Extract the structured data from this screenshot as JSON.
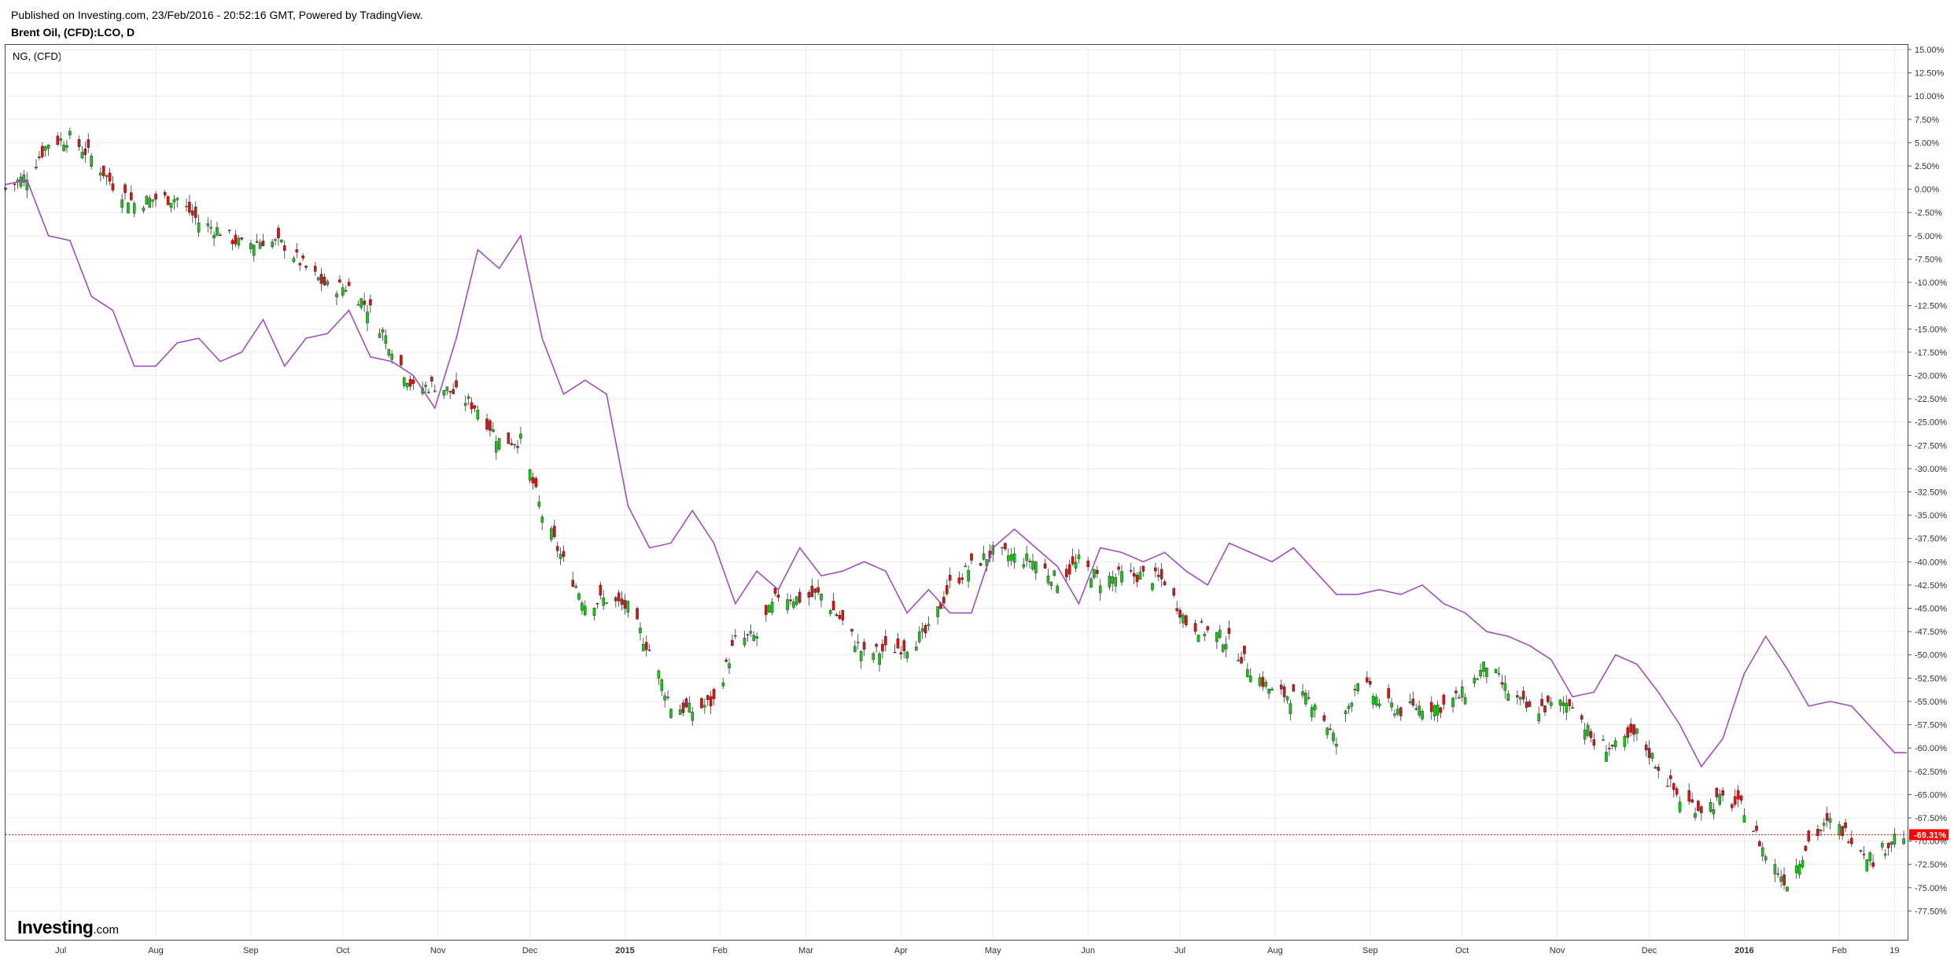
{
  "header": {
    "published": "Published on Investing.com, 23/Feb/2016 - 20:52:16 GMT, Powered by TradingView.",
    "symbol": "Brent Oil, (CFD):LCO, D"
  },
  "compare_label": "NG,  (CFD)",
  "logo": {
    "main": "Investing",
    "suffix": ".com"
  },
  "colors": {
    "up_candle": "#19c419",
    "down_candle": "#d61515",
    "compare_line": "#a34dbd",
    "last_value_marker": "#ff0000",
    "grid": "#ebebeb"
  },
  "chart_data": {
    "type": "line",
    "title": "",
    "ylabel": "",
    "xlabel": "",
    "y_unit": "%",
    "ylim": [
      -80,
      15
    ],
    "y_ticks": [
      "15.00%",
      "12.50%",
      "10.00%",
      "7.50%",
      "5.00%",
      "2.50%",
      "0.00%",
      "-2.50%",
      "-5.00%",
      "-7.50%",
      "-10.00%",
      "-12.50%",
      "-15.00%",
      "-17.50%",
      "-20.00%",
      "-22.50%",
      "-25.00%",
      "-27.50%",
      "-30.00%",
      "-32.50%",
      "-35.00%",
      "-37.50%",
      "-40.00%",
      "-42.50%",
      "-45.00%",
      "-47.50%",
      "-50.00%",
      "-52.50%",
      "-55.00%",
      "-57.50%",
      "-60.00%",
      "-62.50%",
      "-65.00%",
      "-67.50%",
      "-70.00%",
      "-72.50%",
      "-75.00%",
      "-77.50%"
    ],
    "x_ticks": [
      {
        "label": "Jul",
        "bold": false
      },
      {
        "label": "Aug",
        "bold": false
      },
      {
        "label": "Sep",
        "bold": false
      },
      {
        "label": "Oct",
        "bold": false
      },
      {
        "label": "Nov",
        "bold": false
      },
      {
        "label": "Dec",
        "bold": false
      },
      {
        "label": "2015",
        "bold": true
      },
      {
        "label": "Feb",
        "bold": false
      },
      {
        "label": "Mar",
        "bold": false
      },
      {
        "label": "Apr",
        "bold": false
      },
      {
        "label": "May",
        "bold": false
      },
      {
        "label": "Jun",
        "bold": false
      },
      {
        "label": "Jul",
        "bold": false
      },
      {
        "label": "Aug",
        "bold": false
      },
      {
        "label": "Sep",
        "bold": false
      },
      {
        "label": "Oct",
        "bold": false
      },
      {
        "label": "Nov",
        "bold": false
      },
      {
        "label": "Dec",
        "bold": false
      },
      {
        "label": "2016",
        "bold": true
      },
      {
        "label": "Feb",
        "bold": false
      },
      {
        "label": "19",
        "bold": false
      }
    ],
    "x_tick_dates": [
      "2014-07-01",
      "2014-08-01",
      "2014-09-01",
      "2014-10-01",
      "2014-11-01",
      "2014-12-01",
      "2015-01-01",
      "2015-02-01",
      "2015-03-01",
      "2015-04-01",
      "2015-05-01",
      "2015-06-01",
      "2015-07-01",
      "2015-08-01",
      "2015-09-01",
      "2015-10-01",
      "2015-11-01",
      "2015-12-01",
      "2016-01-01",
      "2016-02-01",
      "2016-02-19"
    ],
    "x_range": [
      "2014-06-13",
      "2016-02-23"
    ],
    "grid": true,
    "last_value_label": "-69.31%",
    "candles": {
      "name": "Brent Oil, (CFD):LCO, D",
      "style": "candlestick",
      "points": [
        [
          "2014-06-13",
          0.0
        ],
        [
          "2014-06-20",
          1.5
        ],
        [
          "2014-06-27",
          5.0
        ],
        [
          "2014-07-04",
          5.5
        ],
        [
          "2014-07-11",
          3.5
        ],
        [
          "2014-07-18",
          0.5
        ],
        [
          "2014-07-25",
          -1.5
        ],
        [
          "2014-08-01",
          -1.0
        ],
        [
          "2014-08-08",
          -1.0
        ],
        [
          "2014-08-15",
          -3.5
        ],
        [
          "2014-08-22",
          -4.5
        ],
        [
          "2014-08-29",
          -6.0
        ],
        [
          "2014-09-05",
          -5.5
        ],
        [
          "2014-09-12",
          -6.0
        ],
        [
          "2014-09-19",
          -8.5
        ],
        [
          "2014-09-26",
          -10.5
        ],
        [
          "2014-10-03",
          -10.5
        ],
        [
          "2014-10-10",
          -13.0
        ],
        [
          "2014-10-17",
          -17.0
        ],
        [
          "2014-10-24",
          -21.5
        ],
        [
          "2014-10-31",
          -21.0
        ],
        [
          "2014-11-07",
          -22.0
        ],
        [
          "2014-11-14",
          -23.5
        ],
        [
          "2014-11-21",
          -27.0
        ],
        [
          "2014-11-28",
          -27.0
        ],
        [
          "2014-12-05",
          -35.0
        ],
        [
          "2014-12-12",
          -40.0
        ],
        [
          "2014-12-19",
          -44.5
        ],
        [
          "2014-12-26",
          -44.0
        ],
        [
          "2015-01-02",
          -45.0
        ],
        [
          "2015-01-09",
          -49.5
        ],
        [
          "2015-01-16",
          -55.5
        ],
        [
          "2015-01-23",
          -56.0
        ],
        [
          "2015-01-30",
          -55.0
        ],
        [
          "2015-02-06",
          -48.5
        ],
        [
          "2015-02-13",
          -48.0
        ],
        [
          "2015-02-20",
          -43.5
        ],
        [
          "2015-02-27",
          -44.0
        ],
        [
          "2015-03-06",
          -43.5
        ],
        [
          "2015-03-13",
          -46.5
        ],
        [
          "2015-03-20",
          -50.0
        ],
        [
          "2015-03-27",
          -49.5
        ],
        [
          "2015-04-03",
          -49.0
        ],
        [
          "2015-04-10",
          -47.5
        ],
        [
          "2015-04-17",
          -42.5
        ],
        [
          "2015-04-24",
          -40.5
        ],
        [
          "2015-05-01",
          -39.0
        ],
        [
          "2015-05-08",
          -39.5
        ],
        [
          "2015-05-15",
          -40.0
        ],
        [
          "2015-05-22",
          -42.0
        ],
        [
          "2015-05-29",
          -40.0
        ],
        [
          "2015-06-05",
          -42.0
        ],
        [
          "2015-06-12",
          -41.5
        ],
        [
          "2015-06-19",
          -41.5
        ],
        [
          "2015-06-26",
          -42.0
        ],
        [
          "2015-07-03",
          -46.5
        ],
        [
          "2015-07-10",
          -47.5
        ],
        [
          "2015-07-17",
          -48.5
        ],
        [
          "2015-07-24",
          -51.5
        ],
        [
          "2015-07-31",
          -54.0
        ],
        [
          "2015-08-07",
          -54.5
        ],
        [
          "2015-08-14",
          -55.0
        ],
        [
          "2015-08-21",
          -59.5
        ],
        [
          "2015-08-28",
          -52.5
        ],
        [
          "2015-09-04",
          -55.0
        ],
        [
          "2015-09-11",
          -56.0
        ],
        [
          "2015-09-18",
          -55.5
        ],
        [
          "2015-09-25",
          -55.5
        ],
        [
          "2015-10-02",
          -54.0
        ],
        [
          "2015-10-09",
          -51.0
        ],
        [
          "2015-10-16",
          -54.0
        ],
        [
          "2015-10-23",
          -56.0
        ],
        [
          "2015-10-30",
          -55.5
        ],
        [
          "2015-11-06",
          -55.0
        ],
        [
          "2015-11-13",
          -59.5
        ],
        [
          "2015-11-20",
          -60.0
        ],
        [
          "2015-11-27",
          -58.5
        ],
        [
          "2015-12-04",
          -62.0
        ],
        [
          "2015-12-11",
          -65.5
        ],
        [
          "2015-12-18",
          -66.5
        ],
        [
          "2015-12-25",
          -65.5
        ],
        [
          "2016-01-01",
          -66.5
        ],
        [
          "2016-01-08",
          -71.5
        ],
        [
          "2016-01-15",
          -74.5
        ],
        [
          "2016-01-22",
          -70.0
        ],
        [
          "2016-01-29",
          -68.0
        ],
        [
          "2016-02-05",
          -69.5
        ],
        [
          "2016-02-12",
          -72.0
        ],
        [
          "2016-02-19",
          -69.5
        ],
        [
          "2016-02-23",
          -69.31
        ]
      ]
    },
    "series": [
      {
        "name": "NG,  (CFD)",
        "style": "line",
        "points": [
          [
            "2014-06-13",
            0.5
          ],
          [
            "2014-06-20",
            1.0
          ],
          [
            "2014-06-27",
            -5.0
          ],
          [
            "2014-07-04",
            -5.5
          ],
          [
            "2014-07-11",
            -11.5
          ],
          [
            "2014-07-18",
            -13.0
          ],
          [
            "2014-07-25",
            -19.0
          ],
          [
            "2014-08-01",
            -19.0
          ],
          [
            "2014-08-08",
            -16.5
          ],
          [
            "2014-08-15",
            -16.0
          ],
          [
            "2014-08-22",
            -18.5
          ],
          [
            "2014-08-29",
            -17.5
          ],
          [
            "2014-09-05",
            -14.0
          ],
          [
            "2014-09-12",
            -19.0
          ],
          [
            "2014-09-19",
            -16.0
          ],
          [
            "2014-09-26",
            -15.5
          ],
          [
            "2014-10-03",
            -13.0
          ],
          [
            "2014-10-10",
            -18.0
          ],
          [
            "2014-10-17",
            -18.5
          ],
          [
            "2014-10-24",
            -20.0
          ],
          [
            "2014-10-31",
            -23.5
          ],
          [
            "2014-11-07",
            -16.0
          ],
          [
            "2014-11-14",
            -6.5
          ],
          [
            "2014-11-21",
            -8.5
          ],
          [
            "2014-11-28",
            -5.0
          ],
          [
            "2014-12-05",
            -16.0
          ],
          [
            "2014-12-12",
            -22.0
          ],
          [
            "2014-12-19",
            -20.5
          ],
          [
            "2014-12-26",
            -22.0
          ],
          [
            "2015-01-02",
            -34.0
          ],
          [
            "2015-01-09",
            -38.5
          ],
          [
            "2015-01-16",
            -38.0
          ],
          [
            "2015-01-23",
            -34.5
          ],
          [
            "2015-01-30",
            -38.0
          ],
          [
            "2015-02-06",
            -44.5
          ],
          [
            "2015-02-13",
            -41.0
          ],
          [
            "2015-02-20",
            -43.0
          ],
          [
            "2015-02-27",
            -38.5
          ],
          [
            "2015-03-06",
            -41.5
          ],
          [
            "2015-03-13",
            -41.0
          ],
          [
            "2015-03-20",
            -40.0
          ],
          [
            "2015-03-27",
            -41.0
          ],
          [
            "2015-04-03",
            -45.5
          ],
          [
            "2015-04-10",
            -43.0
          ],
          [
            "2015-04-17",
            -45.5
          ],
          [
            "2015-04-24",
            -45.5
          ],
          [
            "2015-05-01",
            -38.5
          ],
          [
            "2015-05-08",
            -36.5
          ],
          [
            "2015-05-15",
            -38.5
          ],
          [
            "2015-05-22",
            -40.5
          ],
          [
            "2015-05-29",
            -44.5
          ],
          [
            "2015-06-05",
            -38.5
          ],
          [
            "2015-06-12",
            -39.0
          ],
          [
            "2015-06-19",
            -40.0
          ],
          [
            "2015-06-26",
            -39.0
          ],
          [
            "2015-07-03",
            -41.0
          ],
          [
            "2015-07-10",
            -42.5
          ],
          [
            "2015-07-17",
            -38.0
          ],
          [
            "2015-07-24",
            -39.0
          ],
          [
            "2015-07-31",
            -40.0
          ],
          [
            "2015-08-07",
            -38.5
          ],
          [
            "2015-08-14",
            -41.0
          ],
          [
            "2015-08-21",
            -43.5
          ],
          [
            "2015-08-28",
            -43.5
          ],
          [
            "2015-09-04",
            -43.0
          ],
          [
            "2015-09-11",
            -43.5
          ],
          [
            "2015-09-18",
            -42.5
          ],
          [
            "2015-09-25",
            -44.5
          ],
          [
            "2015-10-02",
            -45.5
          ],
          [
            "2015-10-09",
            -47.5
          ],
          [
            "2015-10-16",
            -48.0
          ],
          [
            "2015-10-23",
            -49.0
          ],
          [
            "2015-10-30",
            -50.5
          ],
          [
            "2015-11-06",
            -54.5
          ],
          [
            "2015-11-13",
            -54.0
          ],
          [
            "2015-11-20",
            -50.0
          ],
          [
            "2015-11-27",
            -51.0
          ],
          [
            "2015-12-04",
            -54.0
          ],
          [
            "2015-12-11",
            -57.5
          ],
          [
            "2015-12-18",
            -62.0
          ],
          [
            "2015-12-25",
            -59.0
          ],
          [
            "2016-01-01",
            -52.0
          ],
          [
            "2016-01-08",
            -48.0
          ],
          [
            "2016-01-15",
            -51.5
          ],
          [
            "2016-01-22",
            -55.5
          ],
          [
            "2016-01-29",
            -55.0
          ],
          [
            "2016-02-05",
            -55.5
          ],
          [
            "2016-02-12",
            -58.0
          ],
          [
            "2016-02-19",
            -60.5
          ],
          [
            "2016-02-23",
            -60.5
          ]
        ]
      }
    ]
  }
}
